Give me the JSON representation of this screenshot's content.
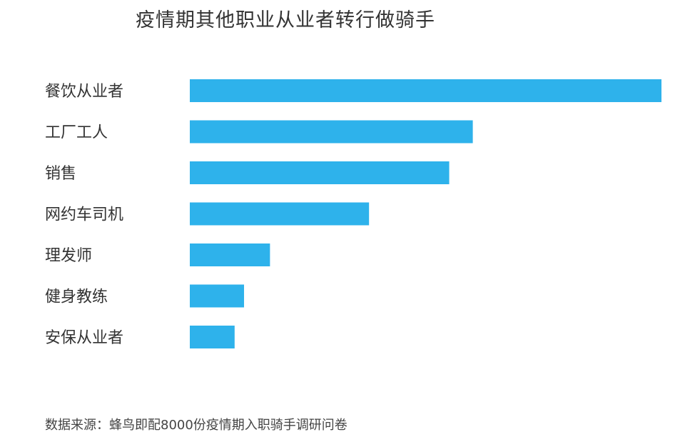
{
  "chart_data": {
    "type": "bar",
    "orientation": "horizontal",
    "title": "疫情期其他职业从业者转行做骑手",
    "categories": [
      "餐饮从业者",
      "工厂工人",
      "销售",
      "网约车司机",
      "理发师",
      "健身教练",
      "安保从业者"
    ],
    "values": [
      100,
      60,
      55,
      38,
      17,
      11.5,
      9.5
    ],
    "xlim": [
      0,
      100
    ],
    "grid": false,
    "legend": "none",
    "colors": {
      "bar": "#2eb2eb"
    }
  },
  "source": "数据来源：蜂鸟即配8000份疫情期入职骑手调研问卷"
}
